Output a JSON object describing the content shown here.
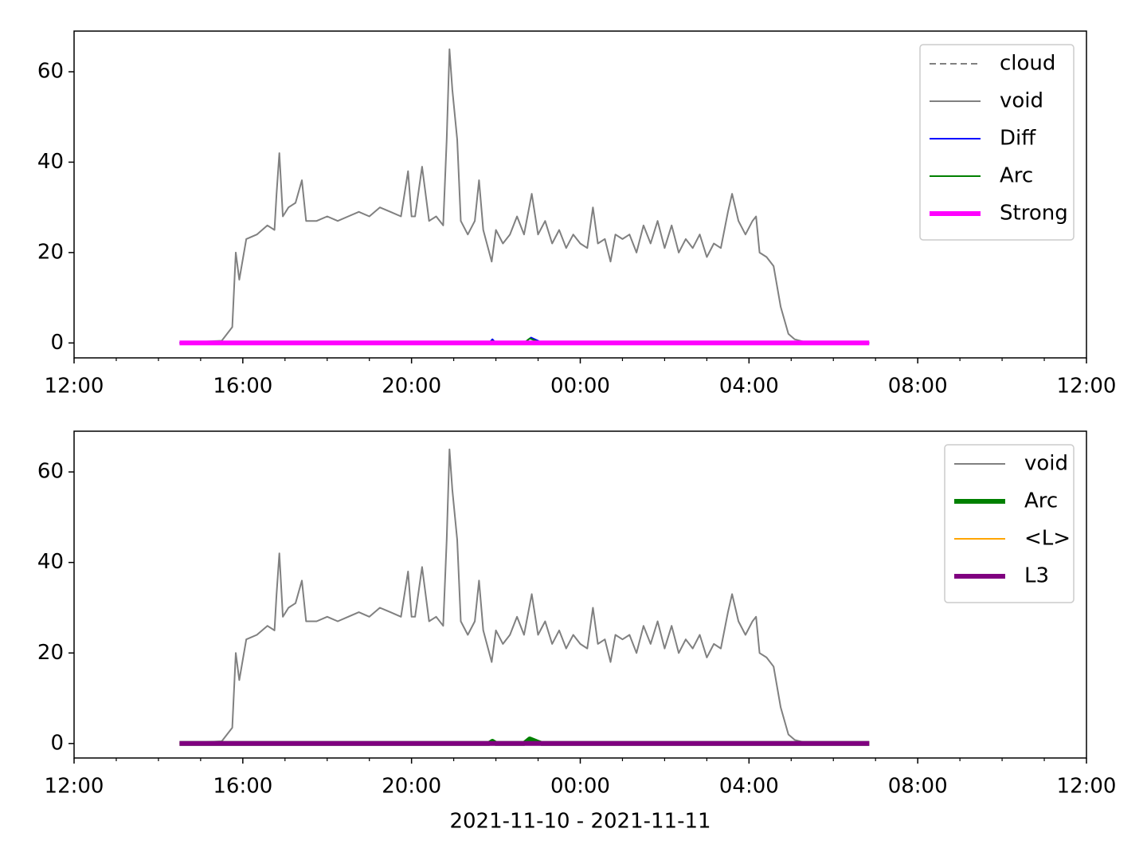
{
  "chart_data": [
    {
      "type": "line",
      "xlim": [
        "2021-11-10T12:00",
        "2021-11-11T12:00"
      ],
      "xticks": [
        {
          "value": "2021-11-10T12:00",
          "label": "12:00"
        },
        {
          "value": "2021-11-10T16:00",
          "label": "16:00"
        },
        {
          "value": "2021-11-10T20:00",
          "label": "20:00"
        },
        {
          "value": "2021-11-11T00:00",
          "label": "00:00"
        },
        {
          "value": "2021-11-11T04:00",
          "label": "04:00"
        },
        {
          "value": "2021-11-11T08:00",
          "label": "08:00"
        },
        {
          "value": "2021-11-11T12:00",
          "label": "12:00"
        }
      ],
      "xminorticks": [
        "2021-11-10T13:00",
        "2021-11-10T14:00",
        "2021-11-10T15:00",
        "2021-11-10T17:00",
        "2021-11-10T18:00",
        "2021-11-10T19:00",
        "2021-11-10T21:00",
        "2021-11-10T22:00",
        "2021-11-10T23:00",
        "2021-11-11T01:00",
        "2021-11-11T02:00",
        "2021-11-11T03:00",
        "2021-11-11T05:00",
        "2021-11-11T06:00",
        "2021-11-11T07:00",
        "2021-11-11T09:00",
        "2021-11-11T10:00",
        "2021-11-11T11:00"
      ],
      "ylim": [
        -3.3,
        69
      ],
      "yticks": [
        0,
        20,
        40,
        60
      ],
      "legend": "upper right",
      "series": [
        {
          "name": "cloud",
          "color": "#808080",
          "width": 1,
          "dash": true,
          "x": [
            "2021-11-10T14:30",
            "2021-11-11T06:51"
          ],
          "values": [
            0,
            0
          ]
        },
        {
          "name": "void",
          "color": "#808080",
          "width": 1,
          "dash": false,
          "x": [
            "2021-11-10T14:30",
            "2021-11-10T15:30",
            "2021-11-10T15:45",
            "2021-11-10T15:50",
            "2021-11-10T15:55",
            "2021-11-10T16:05",
            "2021-11-10T16:20",
            "2021-11-10T16:35",
            "2021-11-10T16:45",
            "2021-11-10T16:48",
            "2021-11-10T16:52",
            "2021-11-10T16:57",
            "2021-11-10T17:05",
            "2021-11-10T17:15",
            "2021-11-10T17:24",
            "2021-11-10T17:30",
            "2021-11-10T17:45",
            "2021-11-10T18:00",
            "2021-11-10T18:15",
            "2021-11-10T18:30",
            "2021-11-10T18:45",
            "2021-11-10T19:00",
            "2021-11-10T19:15",
            "2021-11-10T19:30",
            "2021-11-10T19:45",
            "2021-11-10T19:55",
            "2021-11-10T20:00",
            "2021-11-10T20:05",
            "2021-11-10T20:15",
            "2021-11-10T20:25",
            "2021-11-10T20:35",
            "2021-11-10T20:45",
            "2021-11-10T20:50",
            "2021-11-10T20:54",
            "2021-11-10T20:58",
            "2021-11-10T21:05",
            "2021-11-10T21:10",
            "2021-11-10T21:20",
            "2021-11-10T21:30",
            "2021-11-10T21:36",
            "2021-11-10T21:42",
            "2021-11-10T21:54",
            "2021-11-10T22:00",
            "2021-11-10T22:10",
            "2021-11-10T22:20",
            "2021-11-10T22:30",
            "2021-11-10T22:40",
            "2021-11-10T22:51",
            "2021-11-10T23:00",
            "2021-11-10T23:10",
            "2021-11-10T23:20",
            "2021-11-10T23:30",
            "2021-11-10T23:40",
            "2021-11-10T23:50",
            "2021-11-11T00:00",
            "2021-11-11T00:10",
            "2021-11-11T00:18",
            "2021-11-11T00:25",
            "2021-11-11T00:35",
            "2021-11-11T00:43",
            "2021-11-11T00:50",
            "2021-11-11T01:00",
            "2021-11-11T01:10",
            "2021-11-11T01:20",
            "2021-11-11T01:30",
            "2021-11-11T01:40",
            "2021-11-11T01:50",
            "2021-11-11T02:00",
            "2021-11-11T02:10",
            "2021-11-11T02:20",
            "2021-11-11T02:30",
            "2021-11-11T02:40",
            "2021-11-11T02:50",
            "2021-11-11T03:00",
            "2021-11-11T03:10",
            "2021-11-11T03:20",
            "2021-11-11T03:30",
            "2021-11-11T03:36",
            "2021-11-11T03:45",
            "2021-11-11T03:55",
            "2021-11-11T04:05",
            "2021-11-11T04:10",
            "2021-11-11T04:15",
            "2021-11-11T04:25",
            "2021-11-11T04:35",
            "2021-11-11T04:45",
            "2021-11-11T04:56",
            "2021-11-11T05:05",
            "2021-11-11T05:20",
            "2021-11-11T05:40",
            "2021-11-11T06:51"
          ],
          "values": [
            0,
            0.5,
            3.5,
            20,
            14,
            23,
            24,
            26,
            25,
            33,
            42,
            28,
            30,
            31,
            36,
            27,
            27,
            28,
            27,
            28,
            29,
            28,
            30,
            29,
            28,
            38,
            28,
            28,
            39,
            27,
            28,
            26,
            45,
            65,
            56,
            45,
            27,
            24,
            27,
            36,
            25,
            18,
            25,
            22,
            24,
            28,
            24,
            33,
            24,
            27,
            22,
            25,
            21,
            24,
            22,
            21,
            30,
            22,
            23,
            18,
            24,
            23,
            24,
            20,
            26,
            22,
            27,
            21,
            26,
            20,
            23,
            21,
            24,
            19,
            22,
            21,
            29,
            33,
            27,
            24,
            27,
            28,
            20,
            19,
            17,
            8,
            2,
            0.8,
            0.2,
            0,
            0
          ]
        },
        {
          "name": "Diff",
          "color": "#0000ff",
          "width": 1,
          "dash": false,
          "x": [
            "2021-11-10T14:30",
            "2021-11-10T21:50",
            "2021-11-10T21:55",
            "2021-11-10T22:00",
            "2021-11-10T22:40",
            "2021-11-10T22:50",
            "2021-11-10T23:00",
            "2021-11-10T23:05",
            "2021-11-11T06:51"
          ],
          "values": [
            0,
            0,
            0.8,
            0,
            0,
            1.2,
            0.5,
            0,
            0
          ]
        },
        {
          "name": "Arc",
          "color": "#008000",
          "width": 1,
          "dash": false,
          "x": [
            "2021-11-10T14:30",
            "2021-11-10T21:50",
            "2021-11-10T21:55",
            "2021-11-10T22:00",
            "2021-11-10T22:40",
            "2021-11-10T22:48",
            "2021-11-10T22:58",
            "2021-11-10T23:05",
            "2021-11-11T06:51"
          ],
          "values": [
            0,
            0,
            0.5,
            0,
            0,
            1,
            0.4,
            0,
            0
          ]
        },
        {
          "name": "Strong",
          "color": "#ff00ff",
          "width": 3,
          "dash": false,
          "x": [
            "2021-11-10T14:30",
            "2021-11-11T06:51"
          ],
          "values": [
            0,
            0
          ]
        }
      ]
    },
    {
      "type": "line",
      "xlabel": "2021-11-10 - 2021-11-11",
      "xlim": [
        "2021-11-10T12:00",
        "2021-11-11T12:00"
      ],
      "xticks": [
        {
          "value": "2021-11-10T12:00",
          "label": "12:00"
        },
        {
          "value": "2021-11-10T16:00",
          "label": "16:00"
        },
        {
          "value": "2021-11-10T20:00",
          "label": "20:00"
        },
        {
          "value": "2021-11-11T00:00",
          "label": "00:00"
        },
        {
          "value": "2021-11-11T04:00",
          "label": "04:00"
        },
        {
          "value": "2021-11-11T08:00",
          "label": "08:00"
        },
        {
          "value": "2021-11-11T12:00",
          "label": "12:00"
        }
      ],
      "xminorticks": [
        "2021-11-10T13:00",
        "2021-11-10T14:00",
        "2021-11-10T15:00",
        "2021-11-10T17:00",
        "2021-11-10T18:00",
        "2021-11-10T19:00",
        "2021-11-10T21:00",
        "2021-11-10T22:00",
        "2021-11-10T23:00",
        "2021-11-11T01:00",
        "2021-11-11T02:00",
        "2021-11-11T03:00",
        "2021-11-11T05:00",
        "2021-11-11T06:00",
        "2021-11-11T07:00",
        "2021-11-11T09:00",
        "2021-11-11T10:00",
        "2021-11-11T11:00"
      ],
      "ylim": [
        -3.2,
        69
      ],
      "yticks": [
        0,
        20,
        40,
        60
      ],
      "legend": "upper right",
      "series": [
        {
          "name": "void",
          "color": "#808080",
          "width": 1,
          "dash": false,
          "x": [
            "2021-11-10T14:30",
            "2021-11-10T15:30",
            "2021-11-10T15:45",
            "2021-11-10T15:50",
            "2021-11-10T15:55",
            "2021-11-10T16:05",
            "2021-11-10T16:20",
            "2021-11-10T16:35",
            "2021-11-10T16:45",
            "2021-11-10T16:48",
            "2021-11-10T16:52",
            "2021-11-10T16:57",
            "2021-11-10T17:05",
            "2021-11-10T17:15",
            "2021-11-10T17:24",
            "2021-11-10T17:30",
            "2021-11-10T17:45",
            "2021-11-10T18:00",
            "2021-11-10T18:15",
            "2021-11-10T18:30",
            "2021-11-10T18:45",
            "2021-11-10T19:00",
            "2021-11-10T19:15",
            "2021-11-10T19:30",
            "2021-11-10T19:45",
            "2021-11-10T19:55",
            "2021-11-10T20:00",
            "2021-11-10T20:05",
            "2021-11-10T20:15",
            "2021-11-10T20:25",
            "2021-11-10T20:35",
            "2021-11-10T20:45",
            "2021-11-10T20:50",
            "2021-11-10T20:54",
            "2021-11-10T20:58",
            "2021-11-10T21:05",
            "2021-11-10T21:10",
            "2021-11-10T21:20",
            "2021-11-10T21:30",
            "2021-11-10T21:36",
            "2021-11-10T21:42",
            "2021-11-10T21:54",
            "2021-11-10T22:00",
            "2021-11-10T22:10",
            "2021-11-10T22:20",
            "2021-11-10T22:30",
            "2021-11-10T22:40",
            "2021-11-10T22:51",
            "2021-11-10T23:00",
            "2021-11-10T23:10",
            "2021-11-10T23:20",
            "2021-11-10T23:30",
            "2021-11-10T23:40",
            "2021-11-10T23:50",
            "2021-11-11T00:00",
            "2021-11-11T00:10",
            "2021-11-11T00:18",
            "2021-11-11T00:25",
            "2021-11-11T00:35",
            "2021-11-11T00:43",
            "2021-11-11T00:50",
            "2021-11-11T01:00",
            "2021-11-11T01:10",
            "2021-11-11T01:20",
            "2021-11-11T01:30",
            "2021-11-11T01:40",
            "2021-11-11T01:50",
            "2021-11-11T02:00",
            "2021-11-11T02:10",
            "2021-11-11T02:20",
            "2021-11-11T02:30",
            "2021-11-11T02:40",
            "2021-11-11T02:50",
            "2021-11-11T03:00",
            "2021-11-11T03:10",
            "2021-11-11T03:20",
            "2021-11-11T03:30",
            "2021-11-11T03:36",
            "2021-11-11T03:45",
            "2021-11-11T03:55",
            "2021-11-11T04:05",
            "2021-11-11T04:10",
            "2021-11-11T04:15",
            "2021-11-11T04:25",
            "2021-11-11T04:35",
            "2021-11-11T04:45",
            "2021-11-11T04:56",
            "2021-11-11T05:05",
            "2021-11-11T05:20",
            "2021-11-11T05:40",
            "2021-11-11T06:51"
          ],
          "values": [
            0,
            0.5,
            3.5,
            20,
            14,
            23,
            24,
            26,
            25,
            33,
            42,
            28,
            30,
            31,
            36,
            27,
            27,
            28,
            27,
            28,
            29,
            28,
            30,
            29,
            28,
            38,
            28,
            28,
            39,
            27,
            28,
            26,
            45,
            65,
            56,
            45,
            27,
            24,
            27,
            36,
            25,
            18,
            25,
            22,
            24,
            28,
            24,
            33,
            24,
            27,
            22,
            25,
            21,
            24,
            22,
            21,
            30,
            22,
            23,
            18,
            24,
            23,
            24,
            20,
            26,
            22,
            27,
            21,
            26,
            20,
            23,
            21,
            24,
            19,
            22,
            21,
            29,
            33,
            27,
            24,
            27,
            28,
            20,
            19,
            17,
            8,
            2,
            0.8,
            0.2,
            0,
            0
          ]
        },
        {
          "name": "Arc",
          "color": "#008000",
          "width": 3,
          "dash": false,
          "x": [
            "2021-11-10T14:30",
            "2021-11-10T21:50",
            "2021-11-10T21:55",
            "2021-11-10T22:00",
            "2021-11-10T22:40",
            "2021-11-10T22:48",
            "2021-11-10T22:58",
            "2021-11-10T23:05",
            "2021-11-11T06:51"
          ],
          "values": [
            0,
            0,
            0.5,
            0,
            0,
            1,
            0.4,
            0,
            0
          ]
        },
        {
          "name": "<L>",
          "color": "#ffa500",
          "width": 1,
          "dash": false,
          "x": [
            "2021-11-10T14:30",
            "2021-11-11T06:51"
          ],
          "values": [
            0,
            0
          ]
        },
        {
          "name": "L3",
          "color": "#800080",
          "width": 3,
          "dash": false,
          "x": [
            "2021-11-10T14:30",
            "2021-11-11T06:51"
          ],
          "values": [
            0,
            0
          ]
        }
      ]
    }
  ]
}
